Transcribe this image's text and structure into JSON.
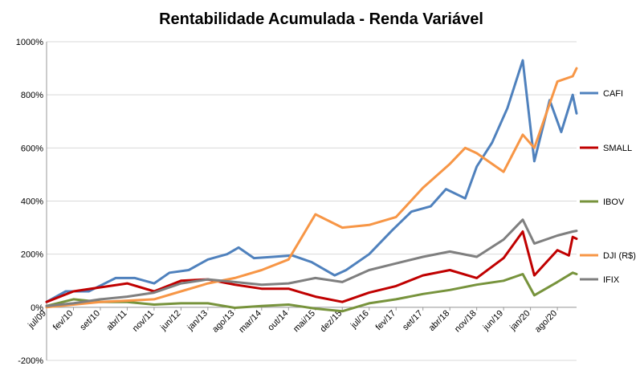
{
  "chart_data": {
    "type": "line",
    "title": "Rentabilidade Acumulada - Renda Variável",
    "xlabel": "",
    "ylabel": "",
    "ylim": [
      -200,
      1000
    ],
    "y_ticks": [
      "-200%",
      "0%",
      "200%",
      "400%",
      "600%",
      "800%",
      "1000%"
    ],
    "y_tick_values": [
      -200,
      0,
      200,
      400,
      600,
      800,
      1000
    ],
    "x_range": [
      "2009-07",
      "2021-01"
    ],
    "x_tick_labels": [
      "jul/09",
      "fev/10",
      "set/10",
      "abr/11",
      "nov/11",
      "jun/12",
      "jan/13",
      "ago/13",
      "mar/14",
      "out/14",
      "mai/15",
      "dez/15",
      "jul/16",
      "fev/17",
      "set/17",
      "abr/18",
      "nov/18",
      "jun/19",
      "jan/20",
      "ago/20"
    ],
    "x_tick_dates": [
      "2009-07",
      "2010-02",
      "2010-09",
      "2011-04",
      "2011-11",
      "2012-06",
      "2013-01",
      "2013-08",
      "2014-03",
      "2014-10",
      "2015-05",
      "2015-12",
      "2016-07",
      "2017-02",
      "2017-09",
      "2018-04",
      "2018-11",
      "2019-06",
      "2020-01",
      "2020-08"
    ],
    "grid": "horizontal",
    "legend_position": "right",
    "series": [
      {
        "name": "CAFI",
        "color": "#4F81BD",
        "points": [
          [
            "2009-07",
            20
          ],
          [
            "2009-12",
            60
          ],
          [
            "2010-06",
            60
          ],
          [
            "2011-01",
            110
          ],
          [
            "2011-06",
            110
          ],
          [
            "2011-11",
            90
          ],
          [
            "2012-03",
            130
          ],
          [
            "2012-08",
            140
          ],
          [
            "2013-01",
            180
          ],
          [
            "2013-06",
            200
          ],
          [
            "2013-09",
            225
          ],
          [
            "2014-01",
            185
          ],
          [
            "2014-06",
            190
          ],
          [
            "2014-11",
            195
          ],
          [
            "2015-04",
            170
          ],
          [
            "2015-10",
            120
          ],
          [
            "2016-01",
            140
          ],
          [
            "2016-07",
            200
          ],
          [
            "2017-01",
            290
          ],
          [
            "2017-06",
            360
          ],
          [
            "2017-11",
            380
          ],
          [
            "2018-03",
            445
          ],
          [
            "2018-08",
            410
          ],
          [
            "2018-11",
            530
          ],
          [
            "2019-03",
            620
          ],
          [
            "2019-07",
            750
          ],
          [
            "2019-11",
            930
          ],
          [
            "2020-02",
            550
          ],
          [
            "2020-06",
            780
          ],
          [
            "2020-09",
            660
          ],
          [
            "2020-12",
            800
          ],
          [
            "2021-01",
            730
          ]
        ]
      },
      {
        "name": "SMALL",
        "color": "#C00000",
        "points": [
          [
            "2009-07",
            20
          ],
          [
            "2010-02",
            60
          ],
          [
            "2010-09",
            75
          ],
          [
            "2011-04",
            90
          ],
          [
            "2011-11",
            60
          ],
          [
            "2012-06",
            100
          ],
          [
            "2013-01",
            105
          ],
          [
            "2013-08",
            85
          ],
          [
            "2014-03",
            70
          ],
          [
            "2014-10",
            70
          ],
          [
            "2015-05",
            40
          ],
          [
            "2015-12",
            20
          ],
          [
            "2016-07",
            55
          ],
          [
            "2017-02",
            80
          ],
          [
            "2017-09",
            120
          ],
          [
            "2018-04",
            140
          ],
          [
            "2018-11",
            110
          ],
          [
            "2019-06",
            185
          ],
          [
            "2019-11",
            285
          ],
          [
            "2020-02",
            120
          ],
          [
            "2020-08",
            215
          ],
          [
            "2020-11",
            195
          ],
          [
            "2020-12",
            265
          ],
          [
            "2021-01",
            258
          ]
        ]
      },
      {
        "name": "IBOV",
        "color": "#77933C",
        "points": [
          [
            "2009-07",
            5
          ],
          [
            "2010-02",
            30
          ],
          [
            "2010-09",
            20
          ],
          [
            "2011-04",
            20
          ],
          [
            "2011-11",
            10
          ],
          [
            "2012-06",
            15
          ],
          [
            "2013-01",
            15
          ],
          [
            "2013-08",
            -2
          ],
          [
            "2014-03",
            5
          ],
          [
            "2014-10",
            10
          ],
          [
            "2015-05",
            -5
          ],
          [
            "2015-12",
            -15
          ],
          [
            "2016-07",
            15
          ],
          [
            "2017-02",
            30
          ],
          [
            "2017-09",
            50
          ],
          [
            "2018-04",
            65
          ],
          [
            "2018-11",
            85
          ],
          [
            "2019-06",
            100
          ],
          [
            "2019-11",
            125
          ],
          [
            "2020-02",
            45
          ],
          [
            "2020-08",
            95
          ],
          [
            "2020-12",
            130
          ],
          [
            "2021-01",
            125
          ]
        ]
      },
      {
        "name": "DJI (R$)",
        "color": "#F79646",
        "points": [
          [
            "2009-07",
            0
          ],
          [
            "2010-02",
            10
          ],
          [
            "2010-09",
            20
          ],
          [
            "2011-04",
            25
          ],
          [
            "2011-11",
            30
          ],
          [
            "2012-06",
            60
          ],
          [
            "2013-01",
            90
          ],
          [
            "2013-08",
            110
          ],
          [
            "2014-03",
            140
          ],
          [
            "2014-10",
            180
          ],
          [
            "2015-05",
            350
          ],
          [
            "2015-12",
            300
          ],
          [
            "2016-07",
            310
          ],
          [
            "2017-02",
            340
          ],
          [
            "2017-09",
            450
          ],
          [
            "2018-04",
            540
          ],
          [
            "2018-08",
            600
          ],
          [
            "2018-11",
            580
          ],
          [
            "2019-06",
            510
          ],
          [
            "2019-11",
            650
          ],
          [
            "2020-02",
            600
          ],
          [
            "2020-08",
            850
          ],
          [
            "2020-12",
            870
          ],
          [
            "2021-01",
            900
          ]
        ]
      },
      {
        "name": "IFIX",
        "color": "#7F7F7F",
        "points": [
          [
            "2009-07",
            5
          ],
          [
            "2010-02",
            15
          ],
          [
            "2010-09",
            30
          ],
          [
            "2011-04",
            40
          ],
          [
            "2011-11",
            55
          ],
          [
            "2012-06",
            90
          ],
          [
            "2013-01",
            105
          ],
          [
            "2013-08",
            95
          ],
          [
            "2014-03",
            85
          ],
          [
            "2014-10",
            90
          ],
          [
            "2015-05",
            110
          ],
          [
            "2015-12",
            95
          ],
          [
            "2016-07",
            140
          ],
          [
            "2017-02",
            165
          ],
          [
            "2017-09",
            190
          ],
          [
            "2018-04",
            210
          ],
          [
            "2018-11",
            190
          ],
          [
            "2019-06",
            255
          ],
          [
            "2019-11",
            330
          ],
          [
            "2020-02",
            240
          ],
          [
            "2020-08",
            270
          ],
          [
            "2020-12",
            285
          ],
          [
            "2021-01",
            288
          ]
        ]
      }
    ]
  }
}
